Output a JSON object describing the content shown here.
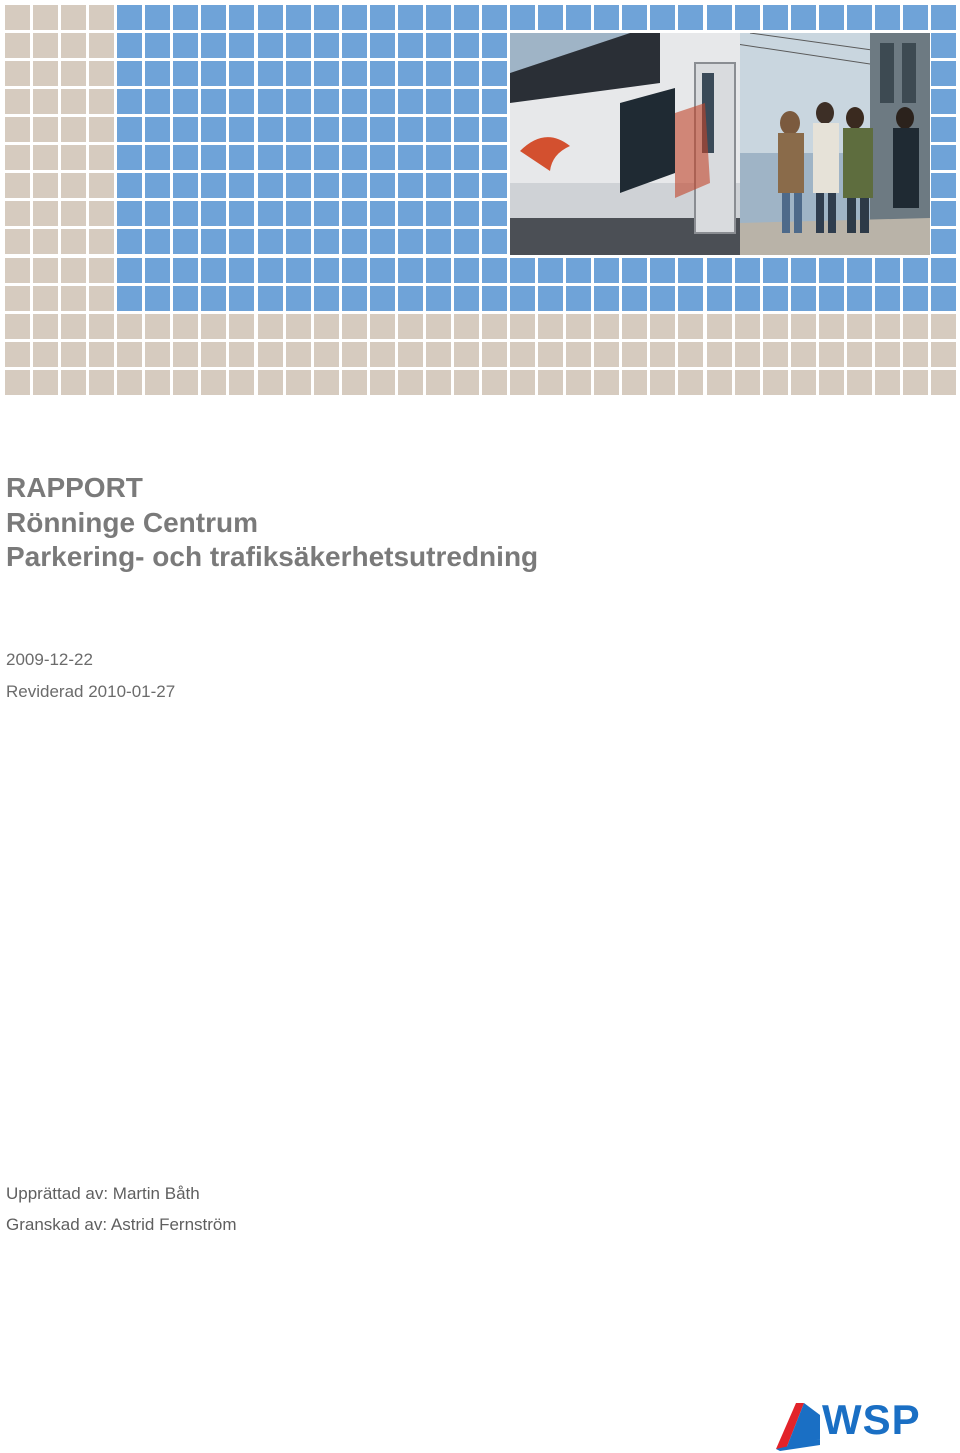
{
  "colors": {
    "tile_beige": "#d6cbbf",
    "tile_blue": "#6fa3d8",
    "title_text": "#7a7a7a",
    "logo_blue": "#1a6fc4",
    "logo_red": "#e2232a"
  },
  "cover_photo": {
    "description_icon": "commuter-train-photo-icon"
  },
  "header": {
    "report_type": "RAPPORT",
    "title_line1": "Rönninge Centrum",
    "title_line2": "Parkering- och trafiksäkerhetsutredning"
  },
  "dates": {
    "date": "2009-12-22",
    "revised": "Reviderad 2010-01-27"
  },
  "authors": {
    "prepared_by": "Upprättad av: Martin Båth",
    "reviewed_by": "Granskad av: Astrid Fernström"
  },
  "logo": {
    "text": "WSP"
  }
}
